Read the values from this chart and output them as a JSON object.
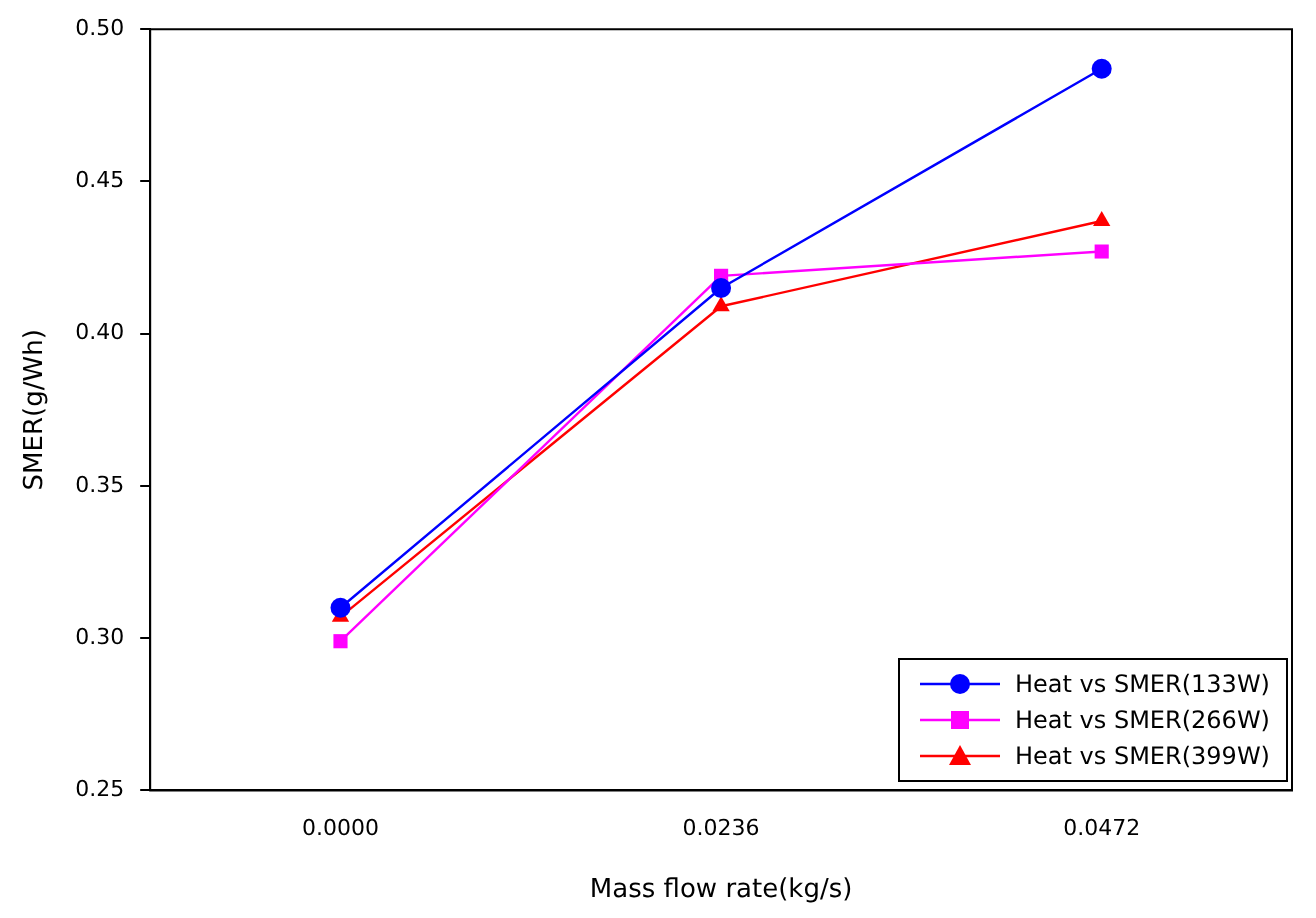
{
  "chart_data": {
    "type": "line",
    "xlabel": "Mass flow rate(kg/s)",
    "ylabel": "SMER(g/Wh)",
    "categories": [
      "0.0000",
      "0.0236",
      "0.0472"
    ],
    "ylim": [
      0.25,
      0.5
    ],
    "yticks": [
      0.25,
      {
        "value": 0.3,
        "label": "0.30"
      },
      0.35,
      {
        "value": 0.4,
        "label": "0.40"
      },
      0.45,
      {
        "value": 0.5,
        "label": "0.50"
      }
    ],
    "grid": false,
    "legend": "bottom right",
    "line_style": "solid",
    "series": [
      {
        "name": "Heat vs SMER(133W)",
        "color": "#0000ff",
        "marker": "circle",
        "values": [
          0.31,
          0.415,
          0.487
        ]
      },
      {
        "name": "Heat vs SMER(266W)",
        "color": "#ff00ff",
        "marker": "square",
        "values": [
          0.299,
          0.419,
          0.427
        ]
      },
      {
        "name": "Heat vs SMER(399W)",
        "color": "#ff0000",
        "marker": "triangle",
        "values": [
          0.307,
          0.409,
          0.437
        ]
      }
    ]
  }
}
